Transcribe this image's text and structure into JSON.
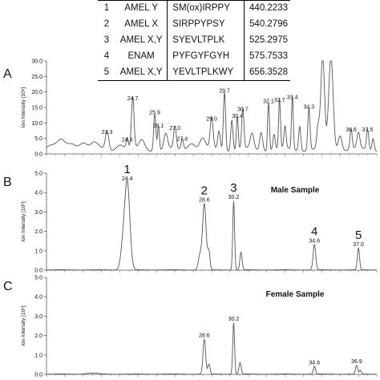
{
  "peptide_table": {
    "rows": [
      {
        "n": "1",
        "protein": "AMEL Y",
        "sequence": "SM(ox)IRPPY",
        "mz": "440.2233"
      },
      {
        "n": "2",
        "protein": "AMEL X",
        "sequence": "SIRPPYPSY",
        "mz": "540.2796"
      },
      {
        "n": "3",
        "protein": "AMEL X,Y",
        "sequence": "SYEVLTPLK",
        "mz": "525.2975"
      },
      {
        "n": "4",
        "protein": "ENAM",
        "sequence": "PYFGYFGYH",
        "mz": "575.7533"
      },
      {
        "n": "5",
        "protein": "AMEL X,Y",
        "sequence": "YEVLTPLKWY",
        "mz": "656.3528"
      }
    ]
  },
  "chart_data": [
    {
      "panel": "A",
      "type": "line",
      "ylabel": "Ion Intensity [10⁶]",
      "xlim": [
        20,
        38
      ],
      "ylim": [
        0,
        30
      ],
      "yticks": [
        "0.0",
        "5.0",
        "10.0",
        "15.0",
        "20.0",
        "25.0",
        "30.0"
      ],
      "grid": false,
      "peak_labels": [
        {
          "x": 23.3,
          "y": 5.7,
          "label": "23.3"
        },
        {
          "x": 24.4,
          "y": 3.2,
          "label": "24.4"
        },
        {
          "x": 24.7,
          "y": 16.5,
          "label": "24.7"
        },
        {
          "x": 25.9,
          "y": 12.0,
          "label": "25.9"
        },
        {
          "x": 26.1,
          "y": 7.8,
          "label": "26.1"
        },
        {
          "x": 27.0,
          "y": 7.0,
          "label": "27.0"
        },
        {
          "x": 27.4,
          "y": 3.5,
          "label": "27.4"
        },
        {
          "x": 29.0,
          "y": 10.0,
          "label": "29.0"
        },
        {
          "x": 29.7,
          "y": 19.0,
          "label": "29.7"
        },
        {
          "x": 30.4,
          "y": 10.8,
          "label": "30.4"
        },
        {
          "x": 30.7,
          "y": 13.0,
          "label": "30.7"
        },
        {
          "x": 32.1,
          "y": 15.7,
          "label": "32.1"
        },
        {
          "x": 32.7,
          "y": 16.0,
          "label": "32.7"
        },
        {
          "x": 33.4,
          "y": 17.0,
          "label": "33.4"
        },
        {
          "x": 34.3,
          "y": 13.8,
          "label": "34.3"
        },
        {
          "x": 36.6,
          "y": 6.5,
          "label": "36.6"
        },
        {
          "x": 37.5,
          "y": 6.5,
          "label": "37.5"
        }
      ],
      "peaks": [
        [
          20.2,
          1.5,
          0.3
        ],
        [
          20.8,
          2.5,
          0.2
        ],
        [
          21.4,
          2.0,
          0.25
        ],
        [
          22.0,
          2.5,
          0.2
        ],
        [
          22.6,
          2.0,
          0.2
        ],
        [
          23.3,
          6.0,
          0.09
        ],
        [
          24.0,
          2.0,
          0.2
        ],
        [
          24.4,
          3.5,
          0.06
        ],
        [
          24.7,
          16.5,
          0.07
        ],
        [
          25.2,
          3.0,
          0.15
        ],
        [
          25.9,
          12.0,
          0.06
        ],
        [
          26.1,
          8.0,
          0.05
        ],
        [
          26.5,
          5.0,
          0.1
        ],
        [
          27.0,
          7.0,
          0.07
        ],
        [
          27.4,
          3.5,
          0.06
        ],
        [
          27.9,
          2.5,
          0.2
        ],
        [
          28.5,
          3.5,
          0.15
        ],
        [
          29.0,
          10.0,
          0.08
        ],
        [
          29.4,
          6.0,
          0.07
        ],
        [
          29.7,
          19.0,
          0.06
        ],
        [
          30.1,
          10.0,
          0.06
        ],
        [
          30.4,
          10.8,
          0.05
        ],
        [
          30.7,
          13.0,
          0.06
        ],
        [
          31.2,
          5.0,
          0.1
        ],
        [
          31.7,
          6.0,
          0.08
        ],
        [
          32.1,
          15.7,
          0.05
        ],
        [
          32.4,
          5.0,
          0.06
        ],
        [
          32.7,
          16.0,
          0.05
        ],
        [
          33.0,
          7.0,
          0.06
        ],
        [
          33.4,
          17.0,
          0.05
        ],
        [
          33.8,
          8.0,
          0.06
        ],
        [
          34.3,
          13.8,
          0.06
        ],
        [
          34.8,
          7.0,
          0.07
        ],
        [
          35.05,
          30.0,
          0.1
        ],
        [
          35.5,
          30.0,
          0.12
        ],
        [
          36.0,
          5.0,
          0.1
        ],
        [
          36.6,
          6.5,
          0.06
        ],
        [
          37.0,
          5.0,
          0.08
        ],
        [
          37.5,
          6.5,
          0.06
        ],
        [
          37.8,
          4.0,
          0.06
        ]
      ],
      "baseline": 2.0
    },
    {
      "panel": "B",
      "type": "line",
      "title": "Male Sample",
      "ylabel": "Ion Intensity [10⁶]",
      "xlim": [
        20,
        38
      ],
      "ylim": [
        0,
        5
      ],
      "yticks": [
        "0.0",
        "1.0",
        "2.0",
        "3.0",
        "4.0",
        "5.0"
      ],
      "grid": false,
      "peak_labels": [
        {
          "x": 24.4,
          "y": 4.5,
          "label": "24.4",
          "marker": "1"
        },
        {
          "x": 28.6,
          "y": 3.4,
          "label": "28.6",
          "marker": "2"
        },
        {
          "x": 30.2,
          "y": 3.55,
          "label": "30.2",
          "marker": "3"
        },
        {
          "x": 34.6,
          "y": 1.3,
          "label": "34.6",
          "marker": "4"
        },
        {
          "x": 37.0,
          "y": 1.12,
          "label": "37.0",
          "marker": "5"
        }
      ],
      "peaks": [
        [
          24.4,
          4.5,
          0.14
        ],
        [
          24.15,
          1.0,
          0.12
        ],
        [
          28.6,
          3.4,
          0.1
        ],
        [
          28.35,
          0.7,
          0.08
        ],
        [
          28.85,
          0.9,
          0.06
        ],
        [
          30.2,
          3.55,
          0.05
        ],
        [
          30.6,
          0.9,
          0.06
        ],
        [
          34.6,
          1.3,
          0.07
        ],
        [
          37.0,
          1.12,
          0.06
        ]
      ],
      "baseline": 0.02
    },
    {
      "panel": "C",
      "type": "line",
      "title": "Female Sample",
      "ylabel": "Ion Intensity [10⁶]",
      "xlim": [
        20,
        38
      ],
      "ylim": [
        0,
        5
      ],
      "yticks": [
        "0.0",
        "1.0",
        "2.0",
        "3.0",
        "4.0",
        "5.0"
      ],
      "grid": false,
      "peak_labels": [
        {
          "x": 28.6,
          "y": 1.8,
          "label": "28.6"
        },
        {
          "x": 30.2,
          "y": 2.65,
          "label": "30.2"
        },
        {
          "x": 34.6,
          "y": 0.4,
          "label": "34.6"
        },
        {
          "x": 36.9,
          "y": 0.45,
          "label": "36.9"
        }
      ],
      "peaks": [
        [
          22.5,
          0.05,
          0.3
        ],
        [
          28.6,
          1.8,
          0.07
        ],
        [
          28.85,
          0.5,
          0.06
        ],
        [
          30.2,
          2.65,
          0.05
        ],
        [
          30.55,
          0.6,
          0.06
        ],
        [
          34.6,
          0.4,
          0.06
        ],
        [
          36.9,
          0.45,
          0.06
        ],
        [
          37.1,
          0.2,
          0.05
        ]
      ],
      "baseline": 0.02
    }
  ],
  "panel_letters": [
    "A",
    "B",
    "C"
  ]
}
